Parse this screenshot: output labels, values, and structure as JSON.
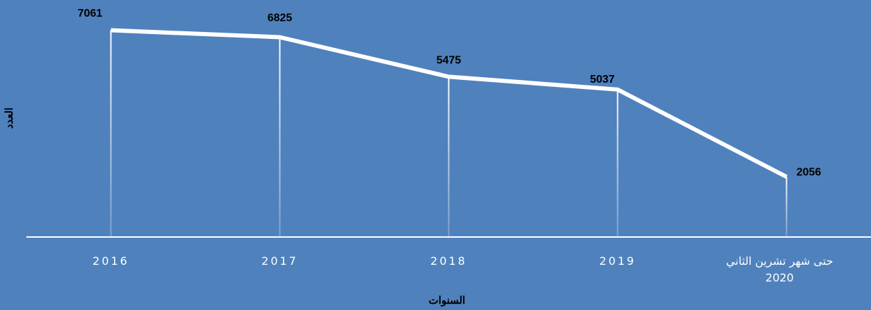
{
  "chart_data": {
    "type": "line",
    "categories": [
      "2016",
      "2017",
      "2018",
      "2019",
      "حتى شهر تشرين الثاني\n2020"
    ],
    "values": [
      7061,
      6825,
      5475,
      5037,
      2056
    ],
    "color": "#ffffff",
    "ylim": [
      0,
      8000
    ],
    "x_label": "السنوات",
    "y_label": "العدد"
  }
}
